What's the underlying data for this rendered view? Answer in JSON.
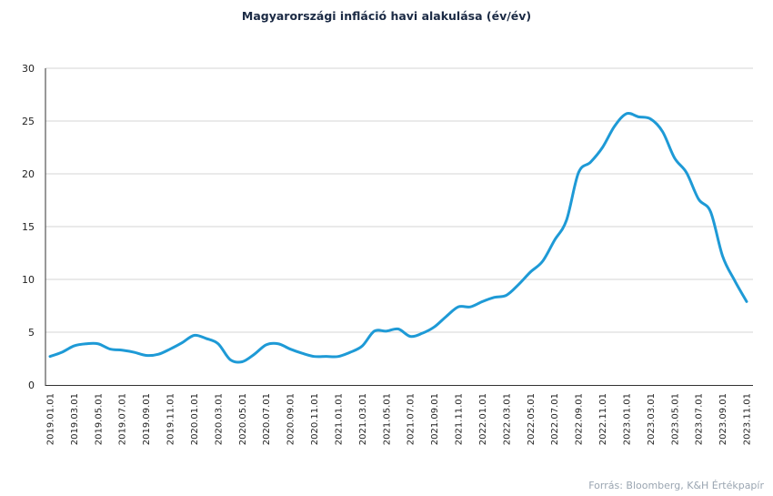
{
  "chart_data": {
    "type": "line",
    "title": "Magyarországi infláció havi alakulása (év/év)",
    "source": "Forrás: Bloomberg,  K&H Értékpapír",
    "xlabel": "",
    "ylabel": "",
    "ylim": [
      0,
      30
    ],
    "yticks": [
      "0",
      "5",
      "10",
      "15",
      "20",
      "25",
      "30"
    ],
    "grid": true,
    "legend": "none",
    "colors": {
      "line": "#1e9ad6",
      "grid": "#d6d6d6",
      "title": "#1b2a44",
      "source": "#9aa5b1"
    },
    "x": [
      "2019.01.01",
      "2019.02.01",
      "2019.03.01",
      "2019.04.01",
      "2019.05.01",
      "2019.06.01",
      "2019.07.01",
      "2019.08.01",
      "2019.09.01",
      "2019.10.01",
      "2019.11.01",
      "2019.12.01",
      "2020.01.01",
      "2020.02.01",
      "2020.03.01",
      "2020.04.01",
      "2020.05.01",
      "2020.06.01",
      "2020.07.01",
      "2020.08.01",
      "2020.09.01",
      "2020.10.01",
      "2020.11.01",
      "2020.12.01",
      "2021.01.01",
      "2021.02.01",
      "2021.03.01",
      "2021.04.01",
      "2021.05.01",
      "2021.06.01",
      "2021.07.01",
      "2021.08.01",
      "2021.09.01",
      "2021.10.01",
      "2021.11.01",
      "2021.12.01",
      "2022.01.01",
      "2022.02.01",
      "2022.03.01",
      "2022.04.01",
      "2022.05.01",
      "2022.06.01",
      "2022.07.01",
      "2022.08.01",
      "2022.09.01",
      "2022.10.01",
      "2022.11.01",
      "2022.12.01",
      "2023.01.01",
      "2023.02.01",
      "2023.03.01",
      "2023.04.01",
      "2023.05.01",
      "2023.06.01",
      "2023.07.01",
      "2023.08.01",
      "2023.09.01",
      "2023.10.01",
      "2023.11.01"
    ],
    "xtick_labels": [
      "2019.01.01",
      "2019.03.01",
      "2019.05.01",
      "2019.07.01",
      "2019.09.01",
      "2019.11.01",
      "2020.01.01",
      "2020.03.01",
      "2020.05.01",
      "2020.07.01",
      "2020.09.01",
      "2020.11.01",
      "2021.01.01",
      "2021.03.01",
      "2021.05.01",
      "2021.07.01",
      "2021.09.01",
      "2021.11.01",
      "2022.01.01",
      "2022.03.01",
      "2022.05.01",
      "2022.07.01",
      "2022.09.01",
      "2022.11.01",
      "2023.01.01",
      "2023.03.01",
      "2023.05.01",
      "2023.07.01",
      "2023.09.01",
      "2023.11.01"
    ],
    "series": [
      {
        "values": [
          2.7,
          3.1,
          3.7,
          3.9,
          3.9,
          3.4,
          3.3,
          3.1,
          2.8,
          2.9,
          3.4,
          4.0,
          4.7,
          4.4,
          3.9,
          2.4,
          2.2,
          2.9,
          3.8,
          3.9,
          3.4,
          3.0,
          2.7,
          2.7,
          2.7,
          3.1,
          3.7,
          5.1,
          5.1,
          5.3,
          4.6,
          4.9,
          5.5,
          6.5,
          7.4,
          7.4,
          7.9,
          8.3,
          8.5,
          9.5,
          10.7,
          11.7,
          13.7,
          15.6,
          20.1,
          21.1,
          22.5,
          24.5,
          25.7,
          25.4,
          25.2,
          24.0,
          21.5,
          20.1,
          17.6,
          16.4,
          12.2,
          9.9,
          7.9
        ]
      }
    ]
  }
}
